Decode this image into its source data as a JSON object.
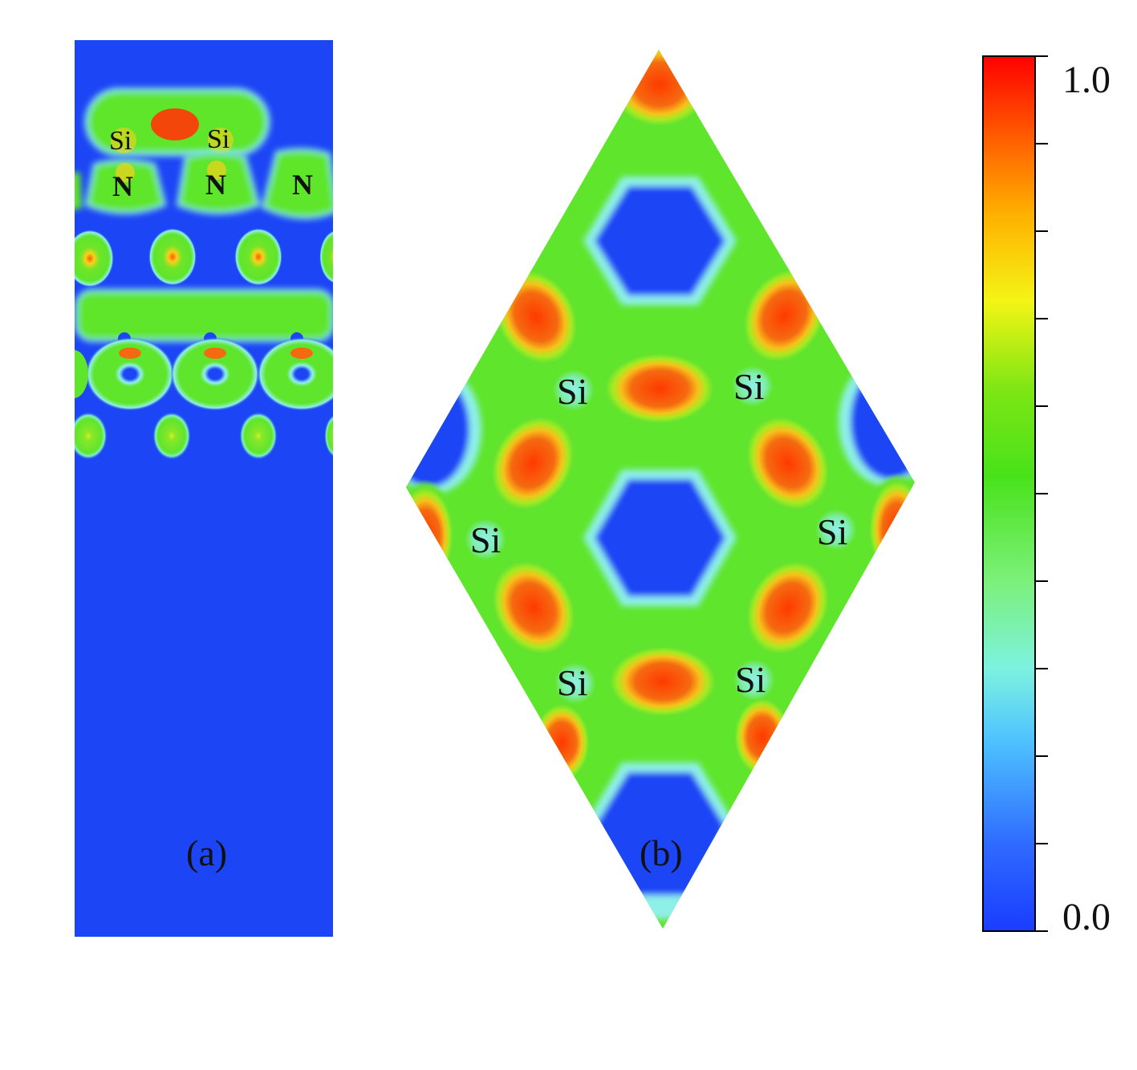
{
  "panel_a": {
    "caption": "(a)",
    "labels": [
      "Si",
      "Si",
      "N",
      "N",
      "N"
    ]
  },
  "panel_b": {
    "caption": "(b)",
    "labels": [
      "Si",
      "Si",
      "Si",
      "Si",
      "Si",
      "Si"
    ]
  },
  "colorbar": {
    "max_label": "1.0",
    "min_label": "0.0",
    "stops": [
      "#1a3cff",
      "#2f6bff",
      "#4fc4ff",
      "#7df2e0",
      "#7cf07a",
      "#49e21a",
      "#a6ee10",
      "#f4f515",
      "#ffb000",
      "#ff5a00",
      "#ff0000"
    ]
  },
  "colors": {
    "low": "#1c45f5",
    "mid": "#5fe52b",
    "high": "#f05a14",
    "cyan": "#8ff0e8"
  }
}
